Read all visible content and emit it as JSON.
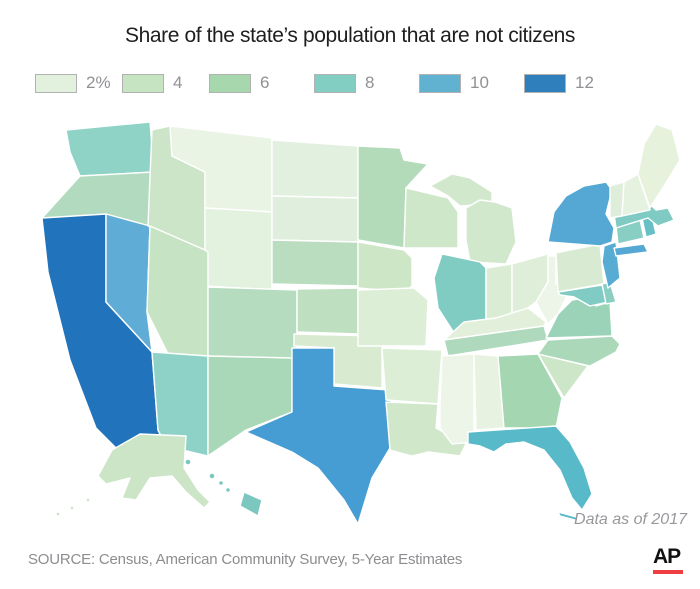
{
  "title": "Share of the state’s population that are not citizens",
  "legend": {
    "items": [
      {
        "label": "2%",
        "color": "#e2f0de"
      },
      {
        "label": "4",
        "color": "#c6e4c2"
      },
      {
        "label": "6",
        "color": "#a7d7ad"
      },
      {
        "label": "8",
        "color": "#82cec2"
      },
      {
        "label": "10",
        "color": "#60b2d0"
      },
      {
        "label": "12",
        "color": "#2e7fbc"
      }
    ],
    "swatch_border_color": "#b2b2b2"
  },
  "note": "Data as of 2017",
  "source": "SOURCE: Census, American Community Survey, 5-Year Estimates",
  "logo_text": "AP",
  "colors": {
    "ap_red": "#ef3e42",
    "title_text": "#1e1e1e",
    "muted_text": "#909195"
  },
  "chart_data": {
    "type": "choropleth",
    "region": "United States",
    "title": "Share of the state’s population that are not citizens",
    "unit": "percent of population",
    "legend_values": [
      2,
      4,
      6,
      8,
      10,
      12
    ],
    "legend_position": "top-left",
    "note": "Data as of 2017",
    "source": "Census, American Community Survey, 5-Year Estimates",
    "states": [
      {
        "abbr": "AL",
        "name": "Alabama",
        "value": 2,
        "color": "#e7f2e0"
      },
      {
        "abbr": "AK",
        "name": "Alaska",
        "value": 4,
        "color": "#cbe5c6"
      },
      {
        "abbr": "AZ",
        "name": "Arizona",
        "value": 8,
        "color": "#8ed2c7"
      },
      {
        "abbr": "AR",
        "name": "Arkansas",
        "value": 3,
        "color": "#ddeed7"
      },
      {
        "abbr": "CA",
        "name": "California",
        "value": 13,
        "color": "#2173bb"
      },
      {
        "abbr": "CO",
        "name": "Colorado",
        "value": 6,
        "color": "#b5dcbe"
      },
      {
        "abbr": "CT",
        "name": "Connecticut",
        "value": 8,
        "color": "#89cec3"
      },
      {
        "abbr": "DE",
        "name": "Delaware",
        "value": 7,
        "color": "#8bcfc3"
      },
      {
        "abbr": "FL",
        "name": "Florida",
        "value": 9,
        "color": "#58b9c9"
      },
      {
        "abbr": "GA",
        "name": "Georgia",
        "value": 6,
        "color": "#a4d6b1"
      },
      {
        "abbr": "HI",
        "name": "Hawaii",
        "value": 8,
        "color": "#7cc8c1"
      },
      {
        "abbr": "ID",
        "name": "Idaho",
        "value": 4,
        "color": "#cce5c8"
      },
      {
        "abbr": "IL",
        "name": "Illinois",
        "value": 7,
        "color": "#80ccc2"
      },
      {
        "abbr": "IN",
        "name": "Indiana",
        "value": 3,
        "color": "#dbecd4"
      },
      {
        "abbr": "IA",
        "name": "Iowa",
        "value": 4,
        "color": "#cce6c6"
      },
      {
        "abbr": "KS",
        "name": "Kansas",
        "value": 5,
        "color": "#bfdfc1"
      },
      {
        "abbr": "KY",
        "name": "Kentucky",
        "value": 3,
        "color": "#e2f0db"
      },
      {
        "abbr": "LA",
        "name": "Louisiana",
        "value": 4,
        "color": "#d0e7ca"
      },
      {
        "abbr": "ME",
        "name": "Maine",
        "value": 3,
        "color": "#e7f2dd"
      },
      {
        "abbr": "MD",
        "name": "Maryland",
        "value": 7,
        "color": "#80ccc4"
      },
      {
        "abbr": "MA",
        "name": "Massachusetts",
        "value": 8,
        "color": "#7fcbc3"
      },
      {
        "abbr": "MI",
        "name": "Michigan",
        "value": 4,
        "color": "#d2e8cc"
      },
      {
        "abbr": "MN",
        "name": "Minnesota",
        "value": 5,
        "color": "#b3dbba"
      },
      {
        "abbr": "MS",
        "name": "Mississippi",
        "value": 2,
        "color": "#ecf5e8"
      },
      {
        "abbr": "MO",
        "name": "Missouri",
        "value": 3,
        "color": "#dceed6"
      },
      {
        "abbr": "MT",
        "name": "Montana",
        "value": 1,
        "color": "#e9f4e5"
      },
      {
        "abbr": "NE",
        "name": "Nebraska",
        "value": 5,
        "color": "#b9ddbe"
      },
      {
        "abbr": "NV",
        "name": "Nevada",
        "value": 10,
        "color": "#5fadd6"
      },
      {
        "abbr": "NH",
        "name": "New Hampshire",
        "value": 2,
        "color": "#e6f2e0"
      },
      {
        "abbr": "NJ",
        "name": "New Jersey",
        "value": 10,
        "color": "#58acd4"
      },
      {
        "abbr": "NM",
        "name": "New Mexico",
        "value": 6,
        "color": "#a9d8b8"
      },
      {
        "abbr": "NY",
        "name": "New York",
        "value": 10,
        "color": "#54a8d3"
      },
      {
        "abbr": "NC",
        "name": "North Carolina",
        "value": 5,
        "color": "#abd8b8"
      },
      {
        "abbr": "ND",
        "name": "North Dakota",
        "value": 2,
        "color": "#e2f0df"
      },
      {
        "abbr": "OH",
        "name": "Ohio",
        "value": 3,
        "color": "#dfeed8"
      },
      {
        "abbr": "OK",
        "name": "Oklahoma",
        "value": 3,
        "color": "#d8ebd1"
      },
      {
        "abbr": "OR",
        "name": "Oregon",
        "value": 6,
        "color": "#b2dabf"
      },
      {
        "abbr": "PA",
        "name": "Pennsylvania",
        "value": 4,
        "color": "#d8ebd2"
      },
      {
        "abbr": "RI",
        "name": "Rhode Island",
        "value": 8,
        "color": "#66c0c6"
      },
      {
        "abbr": "SC",
        "name": "South Carolina",
        "value": 4,
        "color": "#cde6c8"
      },
      {
        "abbr": "SD",
        "name": "South Dakota",
        "value": 2,
        "color": "#e0efdd"
      },
      {
        "abbr": "TN",
        "name": "Tennessee",
        "value": 5,
        "color": "#aed9bd"
      },
      {
        "abbr": "TX",
        "name": "Texas",
        "value": 10,
        "color": "#459dd4"
      },
      {
        "abbr": "UT",
        "name": "Utah",
        "value": 5,
        "color": "#c6e3c4"
      },
      {
        "abbr": "VT",
        "name": "Vermont",
        "value": 3,
        "color": "#dfeeda"
      },
      {
        "abbr": "VA",
        "name": "Virginia",
        "value": 6,
        "color": "#9bd3b8"
      },
      {
        "abbr": "WA",
        "name": "Washington",
        "value": 7,
        "color": "#8fd2c6"
      },
      {
        "abbr": "WV",
        "name": "West Virginia",
        "value": 1,
        "color": "#edf5e9"
      },
      {
        "abbr": "WI",
        "name": "Wisconsin",
        "value": 4,
        "color": "#cfe7c9"
      },
      {
        "abbr": "WY",
        "name": "Wyoming",
        "value": 2,
        "color": "#e3f1df"
      }
    ]
  }
}
